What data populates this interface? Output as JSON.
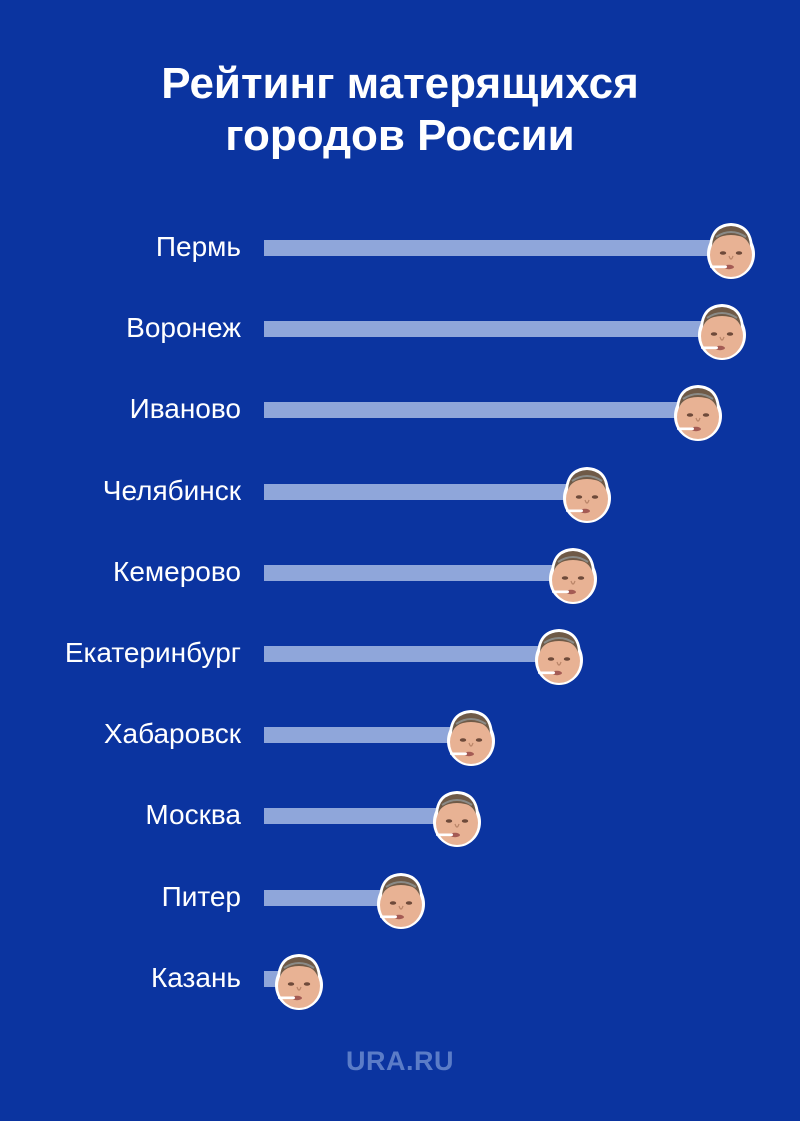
{
  "title_line1": "Рейтинг матерящихся",
  "title_line2": "городов России",
  "watermark": "URA.RU",
  "colors": {
    "background": "#0b34a0",
    "bar": "#8fa6da",
    "text": "#ffffff",
    "watermark": "#5b7cc7"
  },
  "chart_data": {
    "type": "bar",
    "orientation": "horizontal",
    "categories": [
      "Пермь",
      "Воронеж",
      "Иваново",
      "Челябинск",
      "Кемерово",
      "Екатеринбург",
      "Хабаровск",
      "Москва",
      "Питер",
      "Казань"
    ],
    "values": [
      100,
      98,
      93,
      69,
      66,
      63,
      44,
      41,
      29,
      7
    ],
    "marker_icon": "face-icon",
    "xlim": [
      0,
      100
    ],
    "grid": false,
    "legend": "none"
  }
}
